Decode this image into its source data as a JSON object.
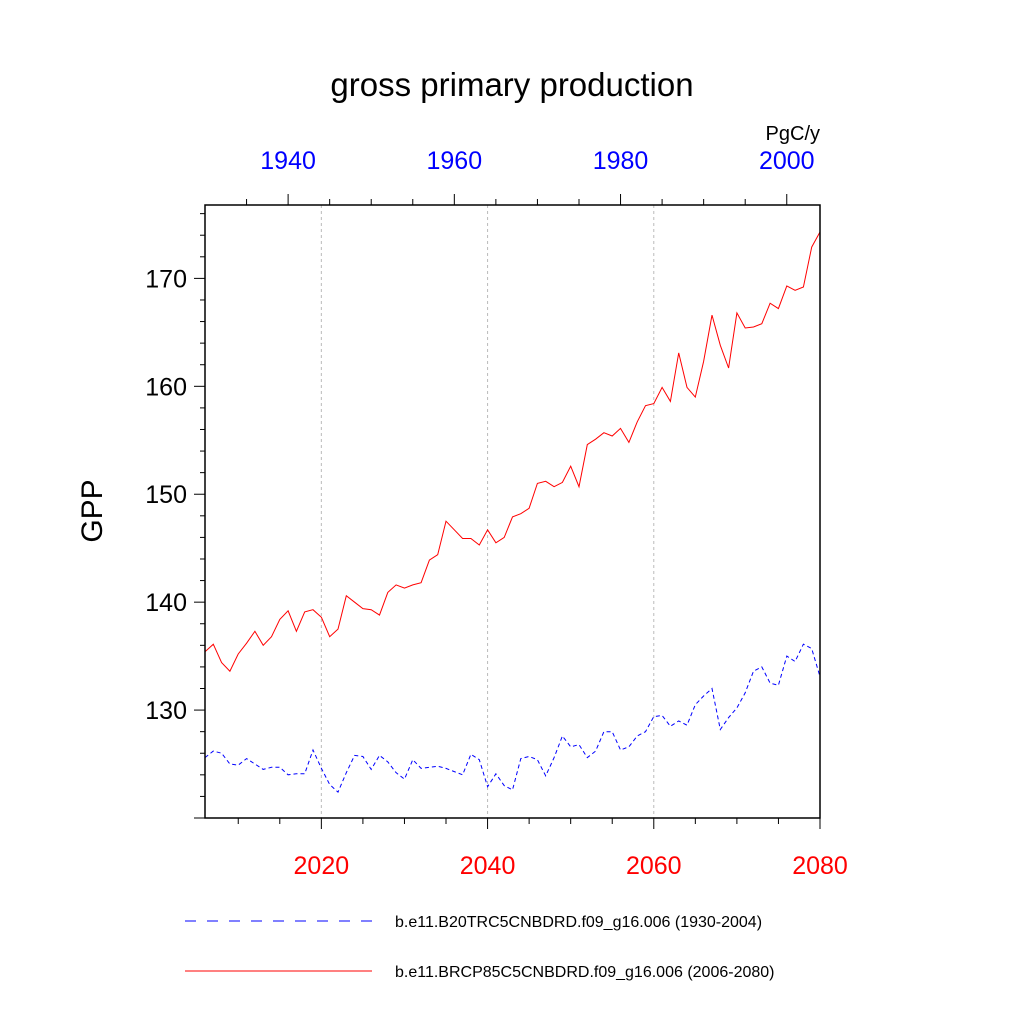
{
  "chart_data": {
    "type": "line",
    "title": "gross primary production",
    "ylabel": "GPP",
    "units": "PgC/y",
    "ylim": [
      120,
      176.8
    ],
    "yticks": [
      130,
      140,
      150,
      160,
      170
    ],
    "x_bottom": {
      "range": [
        2006,
        2080
      ],
      "ticks": [
        2020,
        2040,
        2060,
        2080
      ],
      "color": "#ff0000"
    },
    "x_top": {
      "range": [
        1930,
        2004
      ],
      "ticks": [
        1940,
        1960,
        1980,
        2000
      ],
      "color": "#0000ff"
    },
    "grid": "dotted vertical lines at bottom-axis major ticks",
    "legend_position": "bottom",
    "series": [
      {
        "name": "b.e11.B20TRC5CNBDRD.f09_g16.006 (1930-2004)",
        "axis": "top",
        "color": "#0000ff",
        "dash": "dashed",
        "x_start": 1930,
        "values": [
          125.6,
          126.2,
          126.0,
          125.0,
          124.9,
          125.5,
          125.0,
          124.5,
          124.7,
          124.7,
          124.0,
          124.1,
          124.1,
          126.3,
          124.6,
          123.1,
          122.4,
          124.2,
          125.8,
          125.7,
          124.5,
          125.8,
          125.2,
          124.2,
          123.6,
          125.4,
          124.6,
          124.7,
          124.8,
          124.6,
          124.3,
          124.0,
          125.9,
          125.4,
          122.9,
          124.1,
          123.0,
          122.6,
          125.5,
          125.7,
          125.4,
          123.9,
          125.6,
          127.6,
          126.6,
          126.8,
          125.6,
          126.2,
          128.0,
          128.0,
          126.3,
          126.6,
          127.6,
          128.0,
          129.4,
          129.5,
          128.5,
          129.0,
          128.6,
          130.5,
          131.3,
          132.0,
          128.2,
          129.3,
          130.2,
          131.6,
          133.6,
          134.0,
          132.5,
          132.3,
          135.0,
          134.5,
          136.1,
          135.7,
          133.1
        ]
      },
      {
        "name": "b.e11.BRCP85C5CNBDRD.f09_g16.006 (2006-2080)",
        "axis": "bottom",
        "color": "#ff0000",
        "dash": "solid",
        "x_start": 2006,
        "values": [
          135.4,
          136.1,
          134.4,
          133.6,
          135.2,
          136.2,
          137.3,
          136.0,
          136.8,
          138.4,
          139.2,
          137.3,
          139.1,
          139.3,
          138.6,
          136.8,
          137.5,
          140.6,
          140.0,
          139.4,
          139.3,
          138.8,
          140.9,
          141.6,
          141.3,
          141.6,
          141.8,
          143.9,
          144.4,
          147.5,
          146.7,
          145.9,
          145.9,
          145.3,
          146.7,
          145.5,
          146.0,
          147.9,
          148.2,
          148.7,
          151.0,
          151.2,
          150.7,
          151.1,
          152.6,
          150.7,
          154.6,
          155.1,
          155.7,
          155.4,
          156.1,
          154.8,
          156.7,
          158.2,
          158.4,
          159.9,
          158.6,
          163.1,
          159.9,
          159.0,
          162.3,
          166.6,
          163.8,
          161.7,
          166.8,
          165.4,
          165.5,
          165.8,
          167.7,
          167.2,
          169.3,
          168.9,
          169.2,
          172.9,
          174.3
        ]
      }
    ]
  }
}
